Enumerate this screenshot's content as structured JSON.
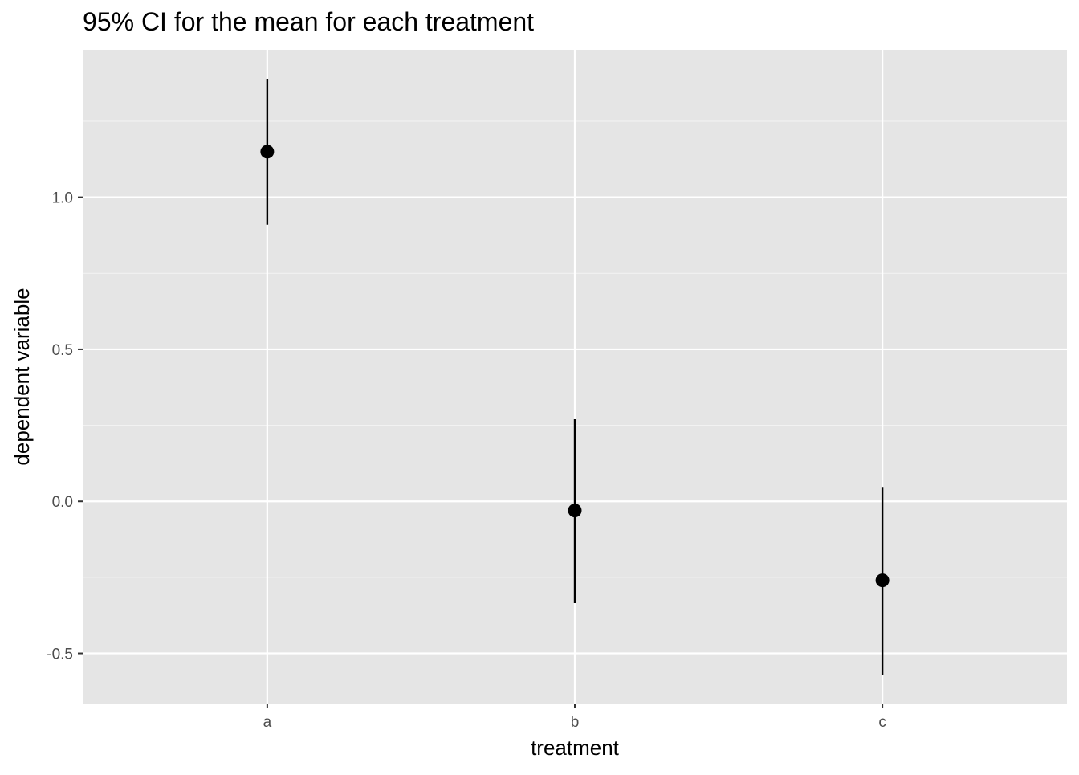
{
  "chart_data": {
    "type": "scatter",
    "title": "95% CI for the mean for each treatment",
    "xlabel": "treatment",
    "ylabel": "dependent variable",
    "categories": [
      "a",
      "b",
      "c"
    ],
    "series": [
      {
        "points": [
          {
            "x": "a",
            "y": 1.15,
            "ymin": 0.91,
            "ymax": 1.39
          },
          {
            "x": "b",
            "y": -0.03,
            "ymin": -0.335,
            "ymax": 0.27
          },
          {
            "x": "c",
            "y": -0.26,
            "ymin": -0.57,
            "ymax": 0.045
          }
        ]
      }
    ],
    "ylim": [
      -0.665,
      1.485
    ],
    "y_ticks": [
      -0.5,
      0.0,
      0.5,
      1.0
    ],
    "y_tick_labels": [
      "-0.5",
      "0.0",
      "0.5",
      "1.0"
    ],
    "grid": true,
    "colors": {
      "panel_background": "#e5e5e5",
      "grid_major": "#ffffff",
      "grid_minor": "#f2f2f2",
      "point": "#000000",
      "tick_label": "#4d4d4d"
    }
  }
}
